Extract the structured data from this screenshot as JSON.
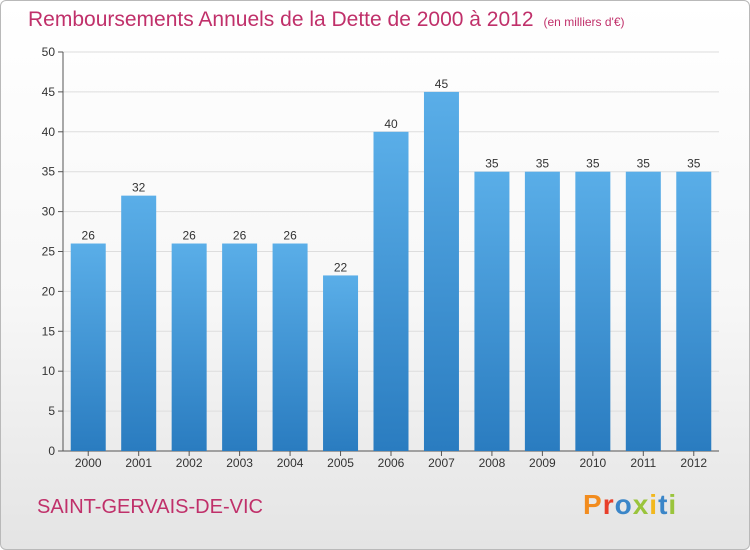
{
  "page": {
    "title": "Remboursements Annuels de la Dette de 2000 à 2012",
    "unit": "(en milliers d'€)",
    "city": "SAINT-GERVAIS-DE-VIC",
    "logo_text": "Proxiti"
  },
  "colors": {
    "bar_top": "#5aaee8",
    "bar_bottom": "#2a7cc0",
    "accent": "#c0306a",
    "grid": "#dddddd"
  },
  "chart_data": {
    "type": "bar",
    "title": "Remboursements Annuels de la Dette de 2000 à 2012",
    "subtitle": "(en milliers d'€)",
    "xlabel": "",
    "ylabel": "",
    "categories": [
      "2000",
      "2001",
      "2002",
      "2003",
      "2004",
      "2005",
      "2006",
      "2007",
      "2008",
      "2009",
      "2010",
      "2011",
      "2012"
    ],
    "values": [
      26,
      32,
      26,
      26,
      26,
      22,
      40,
      45,
      35,
      35,
      35,
      35,
      35
    ],
    "ylim": [
      0,
      50
    ],
    "yticks": [
      0,
      5,
      10,
      15,
      20,
      25,
      30,
      35,
      40,
      45,
      50
    ],
    "grid": true,
    "legend": "none"
  }
}
